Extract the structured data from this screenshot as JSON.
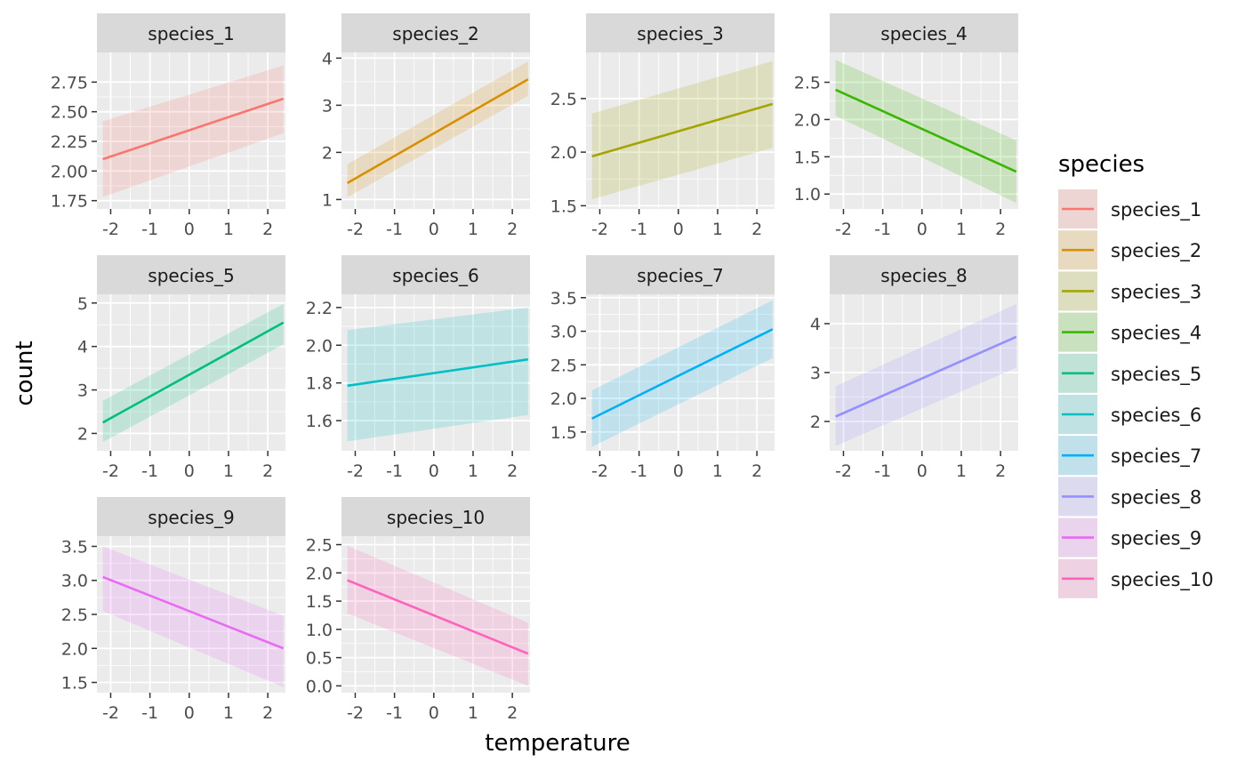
{
  "chart_data": {
    "type": "line",
    "xlabel": "temperature",
    "ylabel": "count",
    "legend": {
      "title": "species",
      "position": "right",
      "entries": [
        "species_1",
        "species_2",
        "species_3",
        "species_4",
        "species_5",
        "species_6",
        "species_7",
        "species_8",
        "species_9",
        "species_10"
      ]
    },
    "grid": true,
    "x_ticks": [
      -2,
      -1,
      0,
      1,
      2
    ],
    "x_tick_labels": [
      "-2",
      "-1",
      "0",
      "1",
      "2"
    ],
    "xlim": [
      -2.35,
      2.45
    ],
    "panels": [
      {
        "name": "species_1",
        "color": "#F8766D",
        "x": [
          -2.2,
          2.4
        ],
        "y": [
          2.1,
          2.61
        ],
        "lower": [
          1.78,
          2.32
        ],
        "upper": [
          2.42,
          2.89
        ],
        "ylim": [
          1.68,
          3.0
        ],
        "y_ticks": [
          1.75,
          2.0,
          2.25,
          2.5,
          2.75
        ],
        "y_tick_labels": [
          "1.75",
          "2.00",
          "2.25",
          "2.50",
          "2.75"
        ]
      },
      {
        "name": "species_2",
        "color": "#D89000",
        "x": [
          -2.2,
          2.4
        ],
        "y": [
          1.35,
          3.55
        ],
        "lower": [
          1.05,
          3.2
        ],
        "upper": [
          1.75,
          3.93
        ],
        "ylim": [
          0.8,
          4.12
        ],
        "y_ticks": [
          1,
          2,
          3,
          4
        ],
        "y_tick_labels": [
          "1",
          "2",
          "3",
          "4"
        ]
      },
      {
        "name": "species_3",
        "color": "#A3A500",
        "x": [
          -2.2,
          2.4
        ],
        "y": [
          1.96,
          2.45
        ],
        "lower": [
          1.56,
          2.04
        ],
        "upper": [
          2.36,
          2.85
        ],
        "ylim": [
          1.47,
          2.93
        ],
        "y_ticks": [
          1.5,
          2.0,
          2.5
        ],
        "y_tick_labels": [
          "1.5",
          "2.0",
          "2.5"
        ]
      },
      {
        "name": "species_4",
        "color": "#39B600",
        "x": [
          -2.2,
          2.4
        ],
        "y": [
          2.4,
          1.3
        ],
        "lower": [
          2.05,
          0.88
        ],
        "upper": [
          2.8,
          1.72
        ],
        "ylim": [
          0.8,
          2.9
        ],
        "y_ticks": [
          1.0,
          1.5,
          2.0,
          2.5
        ],
        "y_tick_labels": [
          "1.0",
          "1.5",
          "2.0",
          "2.5"
        ]
      },
      {
        "name": "species_5",
        "color": "#00BF7D",
        "x": [
          -2.2,
          2.4
        ],
        "y": [
          2.25,
          4.55
        ],
        "lower": [
          1.8,
          4.05
        ],
        "upper": [
          2.75,
          4.98
        ],
        "ylim": [
          1.6,
          5.2
        ],
        "y_ticks": [
          2,
          3,
          4,
          5
        ],
        "y_tick_labels": [
          "2",
          "3",
          "4",
          "5"
        ]
      },
      {
        "name": "species_6",
        "color": "#00BFC4",
        "x": [
          -2.2,
          2.4
        ],
        "y": [
          1.785,
          1.925
        ],
        "lower": [
          1.49,
          1.63
        ],
        "upper": [
          2.08,
          2.2
        ],
        "ylim": [
          1.44,
          2.27
        ],
        "y_ticks": [
          1.6,
          1.8,
          2.0,
          2.2
        ],
        "y_tick_labels": [
          "1.6",
          "1.8",
          "2.0",
          "2.2"
        ]
      },
      {
        "name": "species_7",
        "color": "#00B0F6",
        "x": [
          -2.2,
          2.4
        ],
        "y": [
          1.7,
          3.03
        ],
        "lower": [
          1.28,
          2.6
        ],
        "upper": [
          2.12,
          3.46
        ],
        "ylim": [
          1.22,
          3.55
        ],
        "y_ticks": [
          1.5,
          2.0,
          2.5,
          3.0,
          3.5
        ],
        "y_tick_labels": [
          "1.5",
          "2.0",
          "2.5",
          "3.0",
          "3.5"
        ]
      },
      {
        "name": "species_8",
        "color": "#9590FF",
        "x": [
          -2.2,
          2.4
        ],
        "y": [
          2.1,
          3.73
        ],
        "lower": [
          1.5,
          3.1
        ],
        "upper": [
          2.72,
          4.4
        ],
        "ylim": [
          1.4,
          4.6
        ],
        "y_ticks": [
          2,
          3,
          4
        ],
        "y_tick_labels": [
          "2",
          "3",
          "4"
        ]
      },
      {
        "name": "species_9",
        "color": "#E76BF3",
        "x": [
          -2.2,
          2.4
        ],
        "y": [
          3.05,
          2.0
        ],
        "lower": [
          2.55,
          1.43
        ],
        "upper": [
          3.5,
          2.48
        ],
        "ylim": [
          1.35,
          3.65
        ],
        "y_ticks": [
          1.5,
          2.0,
          2.5,
          3.0,
          3.5
        ],
        "y_tick_labels": [
          "1.5",
          "2.0",
          "2.5",
          "3.0",
          "3.5"
        ]
      },
      {
        "name": "species_10",
        "color": "#FF62BC",
        "x": [
          -2.2,
          2.4
        ],
        "y": [
          1.87,
          0.57
        ],
        "lower": [
          1.28,
          0.0
        ],
        "upper": [
          2.48,
          1.12
        ],
        "ylim": [
          -0.12,
          2.65
        ],
        "y_ticks": [
          0.0,
          0.5,
          1.0,
          1.5,
          2.0,
          2.5
        ],
        "y_tick_labels": [
          "0.0",
          "0.5",
          "1.0",
          "1.5",
          "2.0",
          "2.5"
        ]
      }
    ]
  }
}
